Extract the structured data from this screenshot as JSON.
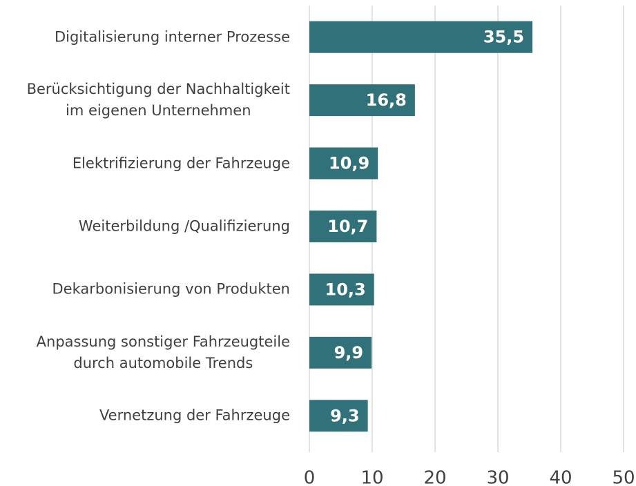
{
  "chart_data": {
    "type": "barh",
    "categories": [
      "Digitalisierung interner Prozesse",
      "Berücksichtigung der Nachhaltigkeit\nim eigenen Unternehmen",
      "Elektrifizierung der Fahrzeuge",
      "Weiterbildung /Qualifizierung",
      "Dekarbonisierung von Produkten",
      "Anpassung sonstiger Fahrzeugteile\ndurch automobile Trends",
      "Vernetzung der Fahrzeuge"
    ],
    "values": [
      35.5,
      16.8,
      10.9,
      10.7,
      10.3,
      9.9,
      9.3
    ],
    "value_labels": [
      "35,5",
      "16,8",
      "10,9",
      "10,7",
      "10,3",
      "9,9",
      "9,3"
    ],
    "color": "#31727a",
    "xlim": [
      0,
      50
    ],
    "xticks": [
      0,
      10,
      20,
      30,
      40,
      50
    ],
    "grid": true
  }
}
